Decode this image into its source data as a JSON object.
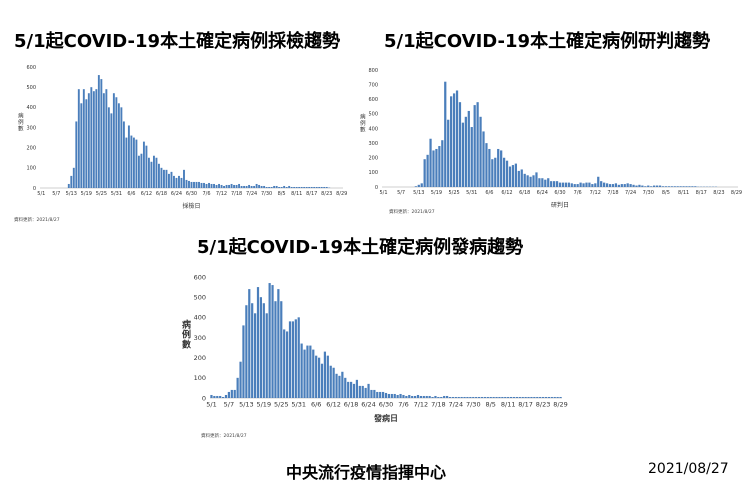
{
  "chart_data": [
    {
      "type": "bar",
      "title": "5/1起COVID-19本土確定病例採檢趨勢",
      "ylabel": "病例數",
      "xlabel": "採檢日",
      "ylim": [
        0,
        600
      ],
      "yticks": [
        0,
        100,
        200,
        300,
        400,
        500,
        600
      ],
      "xtick_labels": [
        "5/1",
        "5/7",
        "5/13",
        "5/19",
        "5/25",
        "5/31",
        "6/6",
        "6/12",
        "6/18",
        "6/24",
        "6/30",
        "7/6",
        "7/12",
        "7/18",
        "7/24",
        "7/30",
        "8/5",
        "8/11",
        "8/17",
        "8/23",
        "8/29"
      ],
      "source": "資料更新：2021/8/27",
      "color": "#4a7ebb",
      "values": [
        0,
        0,
        0,
        0,
        0,
        0,
        0,
        0,
        0,
        0,
        0,
        20,
        60,
        100,
        330,
        490,
        420,
        490,
        440,
        470,
        500,
        480,
        490,
        560,
        540,
        470,
        490,
        400,
        370,
        470,
        450,
        420,
        400,
        330,
        250,
        310,
        260,
        250,
        240,
        160,
        170,
        230,
        210,
        150,
        130,
        160,
        150,
        120,
        100,
        90,
        90,
        70,
        80,
        60,
        50,
        60,
        50,
        90,
        40,
        35,
        30,
        30,
        30,
        30,
        25,
        25,
        20,
        25,
        20,
        20,
        15,
        20,
        15,
        10,
        15,
        15,
        20,
        15,
        15,
        20,
        10,
        10,
        10,
        15,
        10,
        10,
        20,
        15,
        10,
        10,
        5,
        5,
        5,
        10,
        10,
        5,
        5,
        10,
        5,
        10,
        5,
        5,
        5,
        5,
        5,
        5,
        5,
        5,
        5,
        5,
        5,
        5,
        5,
        5,
        5,
        2,
        0,
        0,
        0,
        0,
        0
      ]
    },
    {
      "type": "bar",
      "title": "5/1起COVID-19本土確定病例研判趨勢",
      "ylabel": "病例數",
      "xlabel": "研判日",
      "ylim": [
        0,
        800
      ],
      "yticks": [
        0,
        100,
        200,
        300,
        400,
        500,
        600,
        700,
        800
      ],
      "xtick_labels": [
        "5/1",
        "5/7",
        "5/13",
        "5/19",
        "5/25",
        "5/31",
        "6/6",
        "6/12",
        "6/18",
        "6/24",
        "6/30",
        "7/6",
        "7/12",
        "7/18",
        "7/24",
        "7/30",
        "8/5",
        "8/11",
        "8/17",
        "8/23",
        "8/29"
      ],
      "source": "資料更新：2021/8/27",
      "color": "#4a7ebb",
      "values": [
        0,
        0,
        0,
        0,
        0,
        0,
        0,
        0,
        0,
        0,
        0,
        5,
        15,
        25,
        190,
        220,
        330,
        250,
        260,
        280,
        320,
        720,
        460,
        620,
        640,
        660,
        580,
        440,
        480,
        520,
        410,
        560,
        580,
        480,
        380,
        300,
        260,
        190,
        200,
        260,
        250,
        200,
        180,
        140,
        150,
        160,
        110,
        120,
        90,
        80,
        70,
        80,
        100,
        60,
        60,
        50,
        60,
        40,
        40,
        40,
        30,
        30,
        30,
        30,
        25,
        20,
        20,
        30,
        25,
        30,
        30,
        20,
        25,
        70,
        40,
        30,
        25,
        20,
        20,
        25,
        15,
        20,
        20,
        25,
        20,
        15,
        10,
        15,
        10,
        5,
        10,
        5,
        10,
        10,
        10,
        5,
        5,
        5,
        5,
        5,
        5,
        5,
        5,
        5,
        5,
        5,
        5,
        2,
        2,
        2,
        2,
        2,
        2,
        2,
        0,
        0,
        0,
        0,
        0,
        0,
        0
      ]
    },
    {
      "type": "bar",
      "title": "5/1起COVID-19本土確定病例發病趨勢",
      "ylabel": "病例數",
      "xlabel": "發病日",
      "ylim": [
        0,
        600
      ],
      "yticks": [
        0,
        100,
        200,
        300,
        400,
        500,
        600
      ],
      "xtick_labels": [
        "5/1",
        "5/7",
        "5/13",
        "5/19",
        "5/25",
        "5/31",
        "6/6",
        "6/12",
        "6/18",
        "6/24",
        "6/30",
        "7/6",
        "7/12",
        "7/18",
        "7/24",
        "7/30",
        "8/5",
        "8/11",
        "8/17",
        "8/23",
        "8/29"
      ],
      "source": "資料更新：2021/8/27",
      "color": "#4a7ebb",
      "values": [
        15,
        10,
        10,
        10,
        5,
        15,
        30,
        40,
        40,
        100,
        180,
        360,
        460,
        540,
        470,
        420,
        550,
        500,
        470,
        420,
        570,
        560,
        480,
        540,
        480,
        340,
        330,
        380,
        380,
        390,
        400,
        270,
        240,
        260,
        260,
        240,
        210,
        200,
        170,
        230,
        210,
        160,
        150,
        120,
        110,
        130,
        100,
        80,
        80,
        70,
        90,
        60,
        60,
        50,
        70,
        40,
        40,
        30,
        30,
        30,
        25,
        20,
        20,
        20,
        15,
        20,
        15,
        10,
        15,
        10,
        10,
        15,
        10,
        10,
        10,
        10,
        5,
        10,
        5,
        5,
        10,
        10,
        5,
        5,
        5,
        5,
        5,
        5,
        5,
        5,
        5,
        5,
        5,
        5,
        5,
        5,
        5,
        5,
        5,
        5,
        5,
        5,
        5,
        5,
        5,
        5,
        5,
        5,
        5,
        5,
        5,
        5,
        5,
        5,
        5,
        5,
        5,
        5,
        5,
        5,
        5
      ]
    }
  ],
  "footer": {
    "organization": "中央流行疫情指揮中心",
    "date": "2021/08/27"
  }
}
